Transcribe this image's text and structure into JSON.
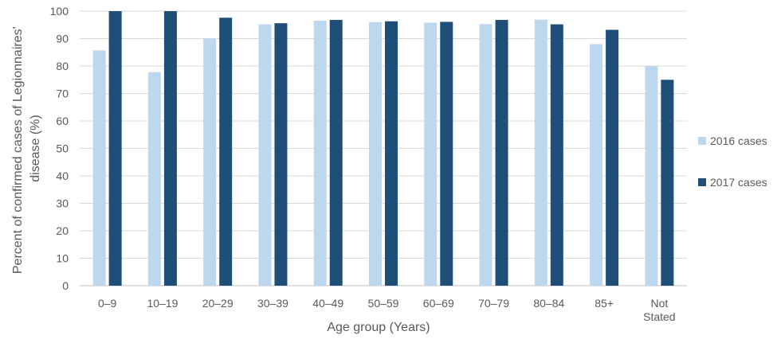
{
  "chart_data": {
    "type": "bar",
    "title": "",
    "xlabel": "Age group (Years)",
    "ylabel": "Percent of confirmed cases of Legionnaires' disease (%)",
    "ylabel_lines": [
      "Percent of confirmed cases of Legionnaires'",
      "disease (%)"
    ],
    "ylim": [
      0,
      100
    ],
    "yticks": [
      0,
      10,
      20,
      30,
      40,
      50,
      60,
      70,
      80,
      90,
      100
    ],
    "grid": true,
    "legend_position": "right",
    "categories": [
      "0–9",
      "10–19",
      "20–29",
      "30–39",
      "40–49",
      "50–59",
      "60–69",
      "70–79",
      "80–84",
      "85+",
      "Not Stated"
    ],
    "category_lines": [
      [
        "0–9"
      ],
      [
        "10–19"
      ],
      [
        "20–29"
      ],
      [
        "30–39"
      ],
      [
        "40–49"
      ],
      [
        "50–59"
      ],
      [
        "60–69"
      ],
      [
        "70–79"
      ],
      [
        "80–84"
      ],
      [
        "85+"
      ],
      [
        "Not",
        "Stated"
      ]
    ],
    "series": [
      {
        "name": "2016 cases",
        "color": "#bdd7ee",
        "values": [
          85.7,
          77.8,
          90.0,
          95.2,
          96.5,
          96.0,
          95.8,
          95.3,
          96.9,
          88.0,
          80.0
        ]
      },
      {
        "name": "2017 cases",
        "color": "#1f4e79",
        "values": [
          100,
          100,
          97.6,
          95.6,
          96.8,
          96.3,
          96.1,
          96.8,
          95.2,
          93.2,
          75.0
        ]
      }
    ]
  }
}
